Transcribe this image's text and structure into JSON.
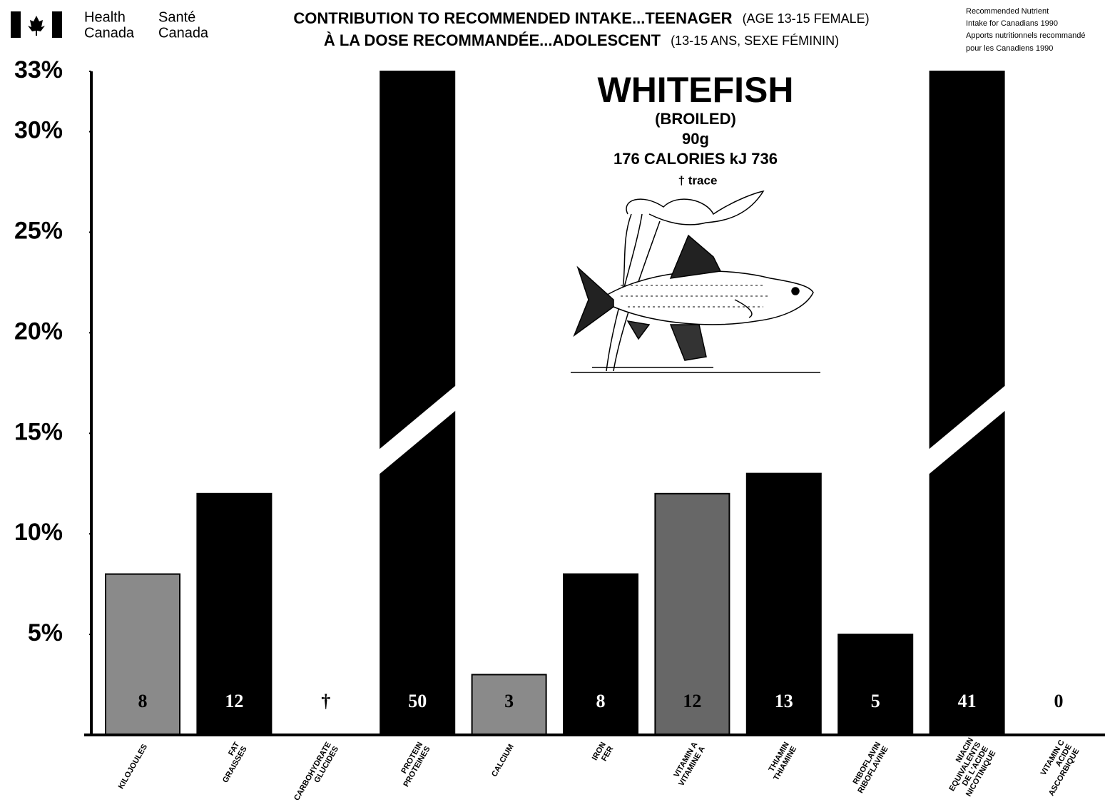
{
  "header": {
    "health": "Health",
    "canada_en": "Canada",
    "sante": "Santé",
    "canada_fr": "Canada"
  },
  "chart_data": {
    "type": "bar",
    "title": "CONTRIBUTION TO RECOMMENDED INTAKE...TEENAGER",
    "title_note": "(AGE 13-15 FEMALE)",
    "subtitle": "À LA DOSE RECOMMANDÉE...ADOLESCENT",
    "subtitle_note": "(13-15 ANS, SEXE FÉMININ)",
    "source": [
      "Recommended Nutrient",
      "Intake for Canadians 1990",
      "Apports nutritionnels recommandé",
      "pour les Canadiens 1990"
    ],
    "annotations": [
      "WHITEFISH",
      "(BROILED)",
      "90g",
      "176 CALORIES kJ 736",
      "† trace"
    ],
    "categories": [
      "KILOJOULES",
      "FAT\nGRAISSES",
      "CARBOHYDRATE\nGLUCIDES",
      "PROTEIN\nPROTEINES",
      "CALCIUM",
      "IRON\nFER",
      "VITAMIN A\nVITAMINE A",
      "THIAMIN\nTHIAMINE",
      "RIBOFLAVIN\nRIBOFLAVINE",
      "NIACIN\nEQUIVALENTS\nDE L'ACIDE\nNICOTINIQUE",
      "VITAMIN C\nACIDE\nASCORBIQUE"
    ],
    "values": [
      8,
      12,
      0,
      50,
      3,
      8,
      12,
      13,
      5,
      41,
      0
    ],
    "value_labels": [
      "8",
      "12",
      "†",
      "50",
      "3",
      "8",
      "12",
      "13",
      "5",
      "41",
      "0"
    ],
    "colors": [
      "#8a8a8a",
      "#000000",
      "#000000",
      "#000000",
      "#8a8a8a",
      "#000000",
      "#676767",
      "#000000",
      "#000000",
      "#000000",
      "#000000"
    ],
    "ylim": [
      0,
      33
    ],
    "yticks": [
      {
        "value": 5,
        "label": "5%"
      },
      {
        "value": 10,
        "label": "10%"
      },
      {
        "value": 15,
        "label": "15%"
      },
      {
        "value": 20,
        "label": "20%"
      },
      {
        "value": 25,
        "label": "25%"
      },
      {
        "value": 30,
        "label": "30%"
      },
      {
        "value": 33,
        "label": "33%"
      }
    ],
    "grid": false
  }
}
